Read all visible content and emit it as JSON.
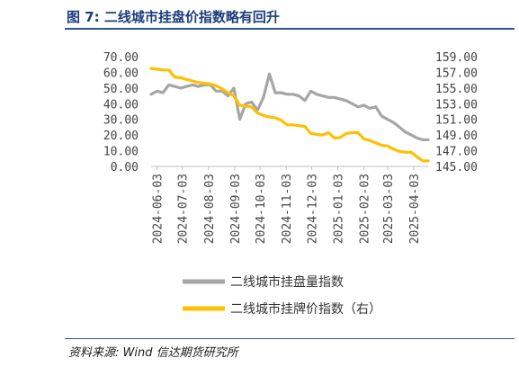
{
  "header": {
    "title": "图 7:  二线城市挂盘价指数略有回升"
  },
  "footer": {
    "source": "资料来源:    Wind  信达期货研究所"
  },
  "chart_data": {
    "type": "line",
    "title": "图 7:  二线城市挂盘价指数略有回升",
    "x_ticks": [
      "2024-06-03",
      "2024-07-03",
      "2024-08-03",
      "2024-09-03",
      "2024-10-03",
      "2024-11-03",
      "2024-12-03",
      "2025-01-03",
      "2025-02-03",
      "2025-03-03",
      "2025-04-03"
    ],
    "x_range": [
      "2024-05-27",
      "2025-04-20"
    ],
    "left_axis": {
      "ylim": [
        0,
        70
      ],
      "ticks": [
        "0.00",
        "10.00",
        "20.00",
        "30.00",
        "40.00",
        "50.00",
        "60.00",
        "70.00"
      ]
    },
    "right_axis": {
      "ylim": [
        145,
        159
      ],
      "ticks": [
        "145.00",
        "147.00",
        "149.00",
        "151.00",
        "153.00",
        "155.00",
        "157.00",
        "159.00"
      ]
    },
    "grid": false,
    "legend_position": "bottom",
    "series": [
      {
        "name": "二线城市挂盘量指数",
        "axis": "left",
        "color": "#a6a6a6",
        "x": [
          "2024-05-27",
          "2024-06-03",
          "2024-06-10",
          "2024-06-17",
          "2024-06-24",
          "2024-07-01",
          "2024-07-08",
          "2024-07-15",
          "2024-07-22",
          "2024-07-29",
          "2024-08-05",
          "2024-08-12",
          "2024-08-19",
          "2024-08-26",
          "2024-09-02",
          "2024-09-09",
          "2024-09-16",
          "2024-09-23",
          "2024-09-30",
          "2024-10-07",
          "2024-10-14",
          "2024-10-21",
          "2024-10-28",
          "2024-11-04",
          "2024-11-11",
          "2024-11-18",
          "2024-11-25",
          "2024-12-02",
          "2024-12-09",
          "2024-12-16",
          "2024-12-23",
          "2024-12-30",
          "2025-01-06",
          "2025-01-13",
          "2025-01-20",
          "2025-01-27",
          "2025-02-03",
          "2025-02-10",
          "2025-02-17",
          "2025-02-24",
          "2025-03-03",
          "2025-03-10",
          "2025-03-17",
          "2025-03-24",
          "2025-03-31",
          "2025-04-07",
          "2025-04-14",
          "2025-04-20"
        ],
        "values": [
          46,
          48,
          47,
          52,
          51,
          50,
          51,
          52,
          51,
          52,
          52,
          48,
          48,
          45,
          50,
          30,
          40,
          41,
          36,
          44,
          59,
          47,
          47,
          46,
          46,
          45,
          42,
          48,
          46,
          45,
          44,
          44,
          43,
          42,
          40,
          38,
          39,
          37,
          38,
          32,
          30,
          28,
          25,
          22,
          20,
          18,
          17,
          17
        ]
      },
      {
        "name": "二线城市挂牌价指数（右）",
        "axis": "right",
        "color": "#ffc000",
        "x": [
          "2024-05-27",
          "2024-06-03",
          "2024-06-10",
          "2024-06-17",
          "2024-06-24",
          "2024-07-01",
          "2024-07-08",
          "2024-07-15",
          "2024-07-22",
          "2024-07-29",
          "2024-08-05",
          "2024-08-12",
          "2024-08-19",
          "2024-08-26",
          "2024-09-02",
          "2024-09-09",
          "2024-09-16",
          "2024-09-23",
          "2024-09-30",
          "2024-10-07",
          "2024-10-14",
          "2024-10-21",
          "2024-10-28",
          "2024-11-04",
          "2024-11-11",
          "2024-11-18",
          "2024-11-25",
          "2024-12-02",
          "2024-12-09",
          "2024-12-16",
          "2024-12-23",
          "2024-12-30",
          "2025-01-06",
          "2025-01-13",
          "2025-01-20",
          "2025-01-27",
          "2025-02-03",
          "2025-02-10",
          "2025-02-17",
          "2025-02-24",
          "2025-03-03",
          "2025-03-10",
          "2025-03-17",
          "2025-03-24",
          "2025-03-31",
          "2025-04-07",
          "2025-04-14",
          "2025-04-20"
        ],
        "values": [
          157.5,
          157.4,
          157.3,
          157.3,
          156.4,
          156.3,
          156.1,
          155.9,
          155.7,
          155.6,
          155.5,
          155.3,
          154.9,
          154.4,
          154.0,
          152.8,
          152.7,
          152.6,
          151.8,
          151.5,
          151.3,
          151.2,
          150.9,
          150.3,
          150.3,
          150.2,
          150.1,
          149.2,
          149.1,
          149.0,
          149.3,
          148.6,
          148.7,
          149.2,
          149.3,
          149.3,
          148.5,
          148.3,
          148.0,
          147.7,
          147.6,
          147.2,
          146.9,
          146.8,
          146.8,
          146.2,
          145.7,
          145.7
        ]
      }
    ]
  }
}
